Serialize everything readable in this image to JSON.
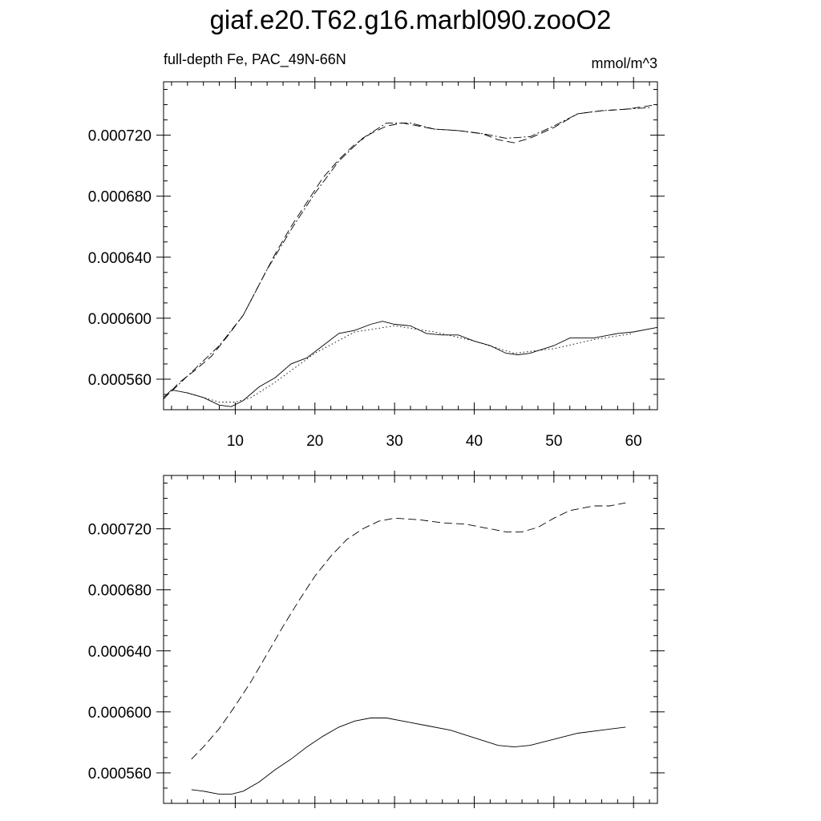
{
  "title": "giaf.e20.T62.g16.marbl090.zooO2",
  "left_string": "full-depth Fe, PAC_49N-66N",
  "right_string": "mmol/m^3",
  "chart_data": [
    {
      "type": "line",
      "panel": "top",
      "xlim": [
        1,
        63
      ],
      "ylim": [
        0.00054,
        0.000755
      ],
      "xticks": [
        10,
        20,
        30,
        40,
        50,
        60
      ],
      "xtick_labels": [
        "10",
        "20",
        "30",
        "40",
        "50",
        "60"
      ],
      "yticks": [
        0.00056,
        0.0006,
        0.00064,
        0.00068,
        0.00072
      ],
      "ytick_labels": [
        "0.000560",
        "0.000600",
        "0.000640",
        "0.000680",
        "0.000720"
      ],
      "series": [
        {
          "style": "solid",
          "x": [
            1,
            2,
            4,
            6,
            8,
            9.5,
            11,
            13,
            15,
            17,
            19,
            21,
            23,
            25,
            27,
            28.5,
            30,
            32,
            34,
            36,
            38,
            40,
            42,
            44,
            45.5,
            47,
            50,
            52,
            55,
            58,
            60,
            63
          ],
          "y": [
            0.000548,
            0.000553,
            0.000551,
            0.000548,
            0.000543,
            0.000542,
            0.000546,
            0.000555,
            0.000561,
            0.00057,
            0.000574,
            0.000582,
            0.00059,
            0.000592,
            0.000596,
            0.000598,
            0.000596,
            0.000595,
            0.00059,
            0.000589,
            0.000589,
            0.000585,
            0.000582,
            0.000577,
            0.000576,
            0.000577,
            0.000582,
            0.000587,
            0.000587,
            0.00059,
            0.000591,
            0.000594
          ]
        },
        {
          "style": "dotted",
          "x": [
            4,
            6,
            8,
            10,
            12,
            15,
            20,
            25,
            30,
            35,
            40,
            45,
            50,
            55,
            60
          ],
          "y": [
            0.000551,
            0.000548,
            0.000545,
            0.000545,
            0.000548,
            0.000558,
            0.000577,
            0.000591,
            0.000595,
            0.000591,
            0.000585,
            0.000577,
            0.00058,
            0.000586,
            0.00059
          ]
        },
        {
          "style": "dashed",
          "x": [
            1,
            3,
            5,
            7,
            9,
            11,
            13,
            15,
            17,
            19,
            21,
            23,
            25,
            27,
            29,
            31,
            33,
            35,
            38,
            41,
            43,
            45,
            47,
            50,
            53,
            56,
            59,
            63
          ],
          "y": [
            0.000547,
            0.000558,
            0.000566,
            0.000575,
            0.000588,
            0.000602,
            0.000622,
            0.000642,
            0.00066,
            0.000676,
            0.000692,
            0.000704,
            0.000714,
            0.000721,
            0.000726,
            0.000728,
            0.000726,
            0.000724,
            0.000723,
            0.000721,
            0.000717,
            0.000715,
            0.000718,
            0.000725,
            0.000734,
            0.000736,
            0.000737,
            0.00074
          ]
        },
        {
          "style": "dashdot",
          "x": [
            2,
            5,
            8,
            11,
            14,
            17,
            20,
            23,
            26,
            29,
            32,
            35,
            38,
            41,
            44,
            47,
            50,
            53,
            56,
            59,
            62
          ],
          "y": [
            0.000552,
            0.000567,
            0.000582,
            0.000602,
            0.000632,
            0.000658,
            0.000682,
            0.000703,
            0.000718,
            0.000728,
            0.000728,
            0.000724,
            0.000723,
            0.000721,
            0.000718,
            0.000719,
            0.000726,
            0.000734,
            0.000736,
            0.000737,
            0.000738
          ]
        }
      ]
    },
    {
      "type": "line",
      "panel": "bottom",
      "xlim": [
        1,
        63
      ],
      "ylim": [
        0.00054,
        0.000755
      ],
      "yticks": [
        0.00056,
        0.0006,
        0.00064,
        0.00068,
        0.00072
      ],
      "ytick_labels": [
        "0.000560",
        "0.000600",
        "0.000640",
        "0.000680",
        "0.000720"
      ],
      "series": [
        {
          "style": "solid",
          "x": [
            4.5,
            6,
            8,
            9.5,
            11,
            13,
            15,
            17,
            19,
            21,
            23,
            25,
            27,
            29,
            31,
            34,
            37,
            40,
            43,
            45,
            47,
            50,
            53,
            56,
            59
          ],
          "y": [
            0.000549,
            0.000548,
            0.000546,
            0.000546,
            0.000548,
            0.000554,
            0.000562,
            0.000569,
            0.000577,
            0.000584,
            0.00059,
            0.000594,
            0.000596,
            0.000596,
            0.000594,
            0.000591,
            0.000588,
            0.000583,
            0.000578,
            0.000577,
            0.000578,
            0.000582,
            0.000586,
            0.000588,
            0.00059
          ]
        },
        {
          "style": "dashed",
          "x": [
            4.5,
            6,
            8,
            10,
            12,
            14,
            16,
            18,
            20,
            22,
            24,
            26,
            28,
            30,
            33,
            36,
            39,
            42,
            44,
            46,
            48,
            50,
            52,
            55,
            57,
            59
          ],
          "y": [
            0.000569,
            0.000577,
            0.000589,
            0.000604,
            0.00062,
            0.000638,
            0.000656,
            0.000673,
            0.000689,
            0.000702,
            0.000713,
            0.00072,
            0.000725,
            0.000727,
            0.000726,
            0.000724,
            0.000723,
            0.00072,
            0.000718,
            0.000718,
            0.000721,
            0.000727,
            0.000732,
            0.000735,
            0.000735,
            0.000737
          ]
        }
      ]
    }
  ]
}
